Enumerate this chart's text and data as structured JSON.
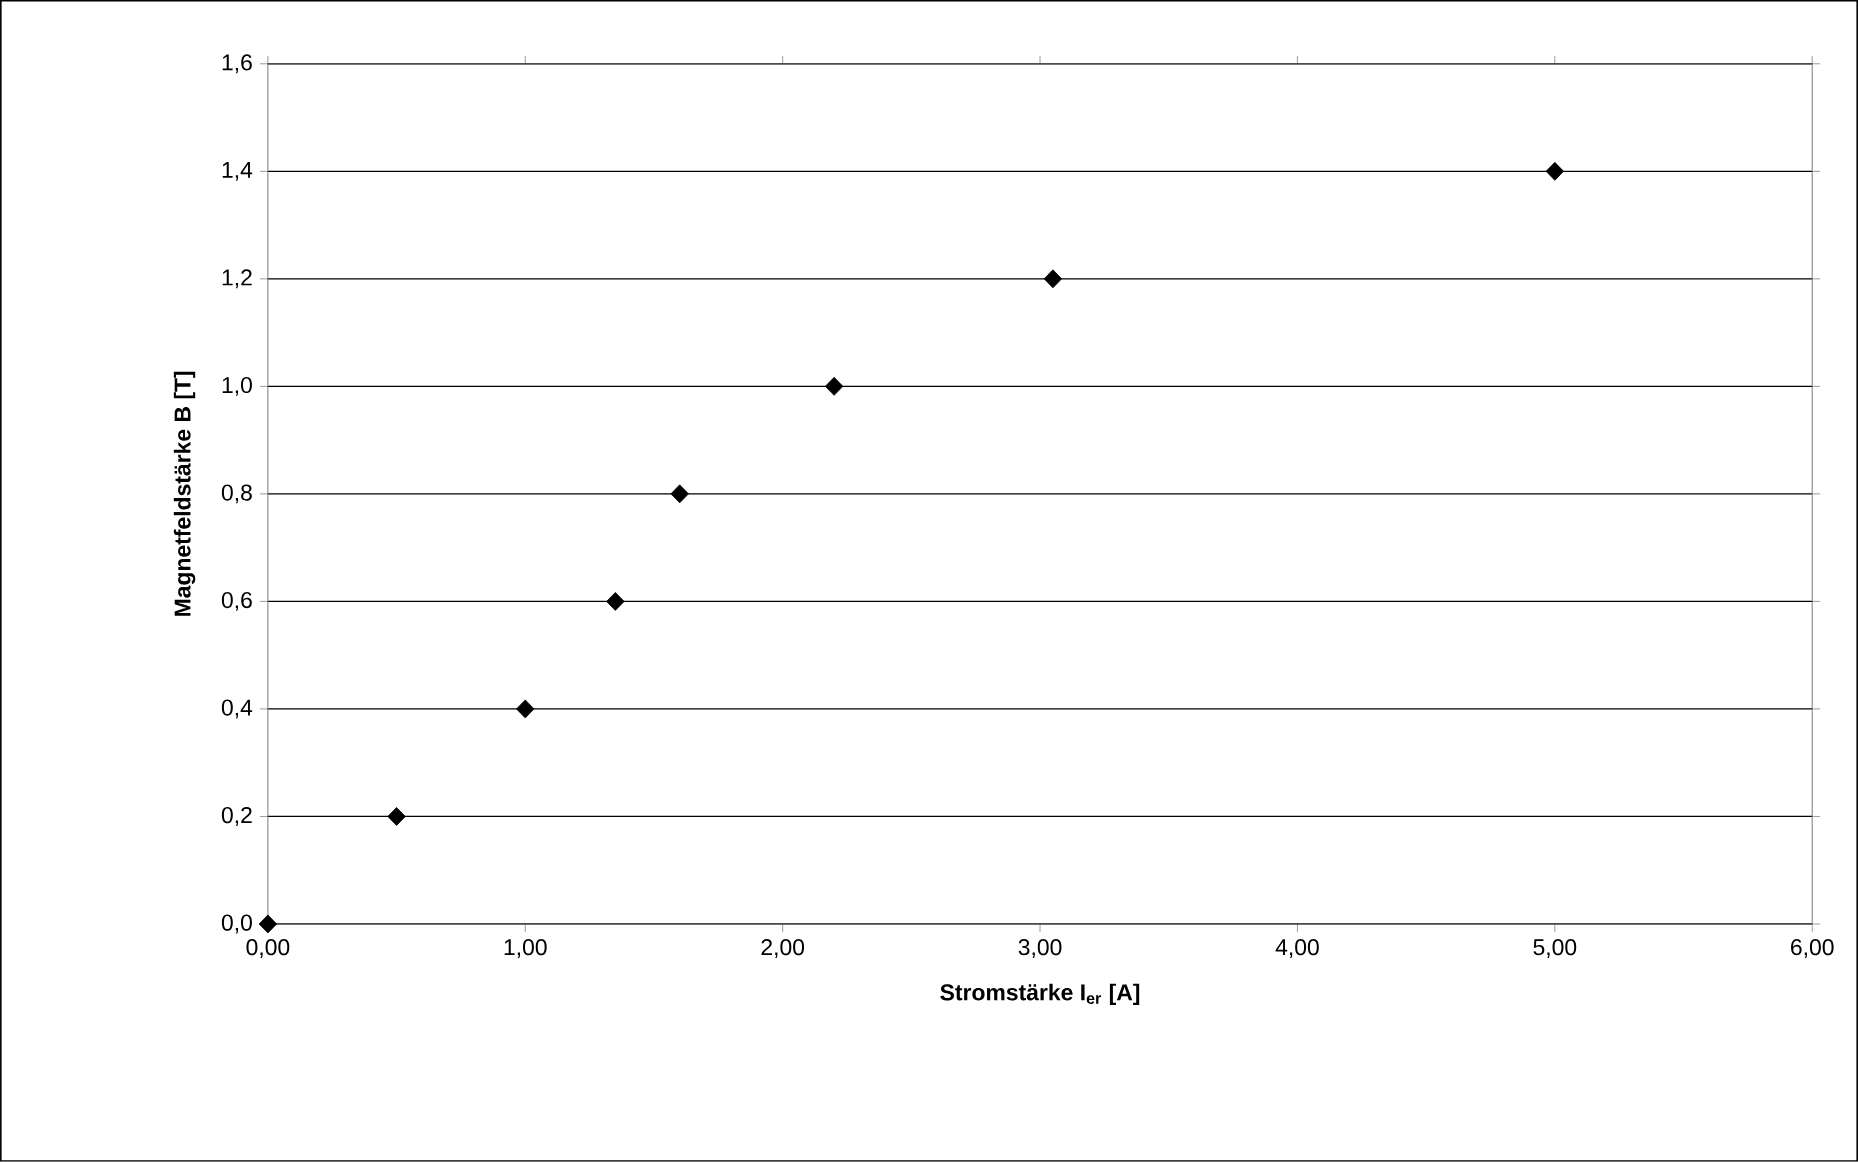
{
  "chart_data": {
    "type": "scatter",
    "xlabel": "Stromstärke I$_{er}$ [A]",
    "ylabel": "Magnetfeldstärke B [T]",
    "x": [
      0,
      0.5,
      1.0,
      1.35,
      1.6,
      2.2,
      3.05,
      5.0
    ],
    "values": [
      0,
      0.2,
      0.4,
      0.6,
      0.8,
      1.0,
      1.2,
      1.4
    ],
    "color": "#000000",
    "marker": "diamond",
    "grid": "y",
    "xlim": [
      0,
      6
    ],
    "ylim": [
      0,
      1.6
    ],
    "xticks": [
      {
        "value": 0,
        "label": "0,00"
      },
      {
        "value": 1,
        "label": "1,00"
      },
      {
        "value": 2,
        "label": "2,00"
      },
      {
        "value": 3,
        "label": "3,00"
      },
      {
        "value": 4,
        "label": "4,00"
      },
      {
        "value": 5,
        "label": "5,00"
      },
      {
        "value": 6,
        "label": "6,00"
      }
    ],
    "yticks": [
      {
        "value": 0,
        "label": "0,0"
      },
      {
        "value": 0.2,
        "label": "0,2"
      },
      {
        "value": 0.4,
        "label": "0,4"
      },
      {
        "value": 0.6,
        "label": "0,6"
      },
      {
        "value": 0.8,
        "label": "0,8"
      },
      {
        "value": 1.0,
        "label": "1,0"
      },
      {
        "value": 1.2,
        "label": "1,2"
      },
      {
        "value": 1.4,
        "label": "1,4"
      },
      {
        "value": 1.6,
        "label": "1,6"
      }
    ]
  }
}
